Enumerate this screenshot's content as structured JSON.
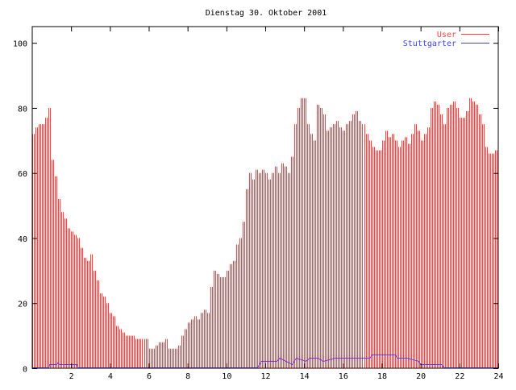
{
  "chart_data": {
    "type": "bar",
    "title": "Dienstag 30. Oktober 2001",
    "xlabel": "",
    "ylabel": "",
    "xlim": [
      0,
      24
    ],
    "ylim": [
      0,
      105
    ],
    "x_ticks": [
      "2",
      "4",
      "6",
      "8",
      "10",
      "12",
      "14",
      "16",
      "18",
      "20",
      "22",
      "24"
    ],
    "y_ticks": [
      "0",
      "20",
      "40",
      "60",
      "80",
      "100"
    ],
    "legend_position": "top-right",
    "series": [
      {
        "name": "User",
        "style": "impulses",
        "color": "#ff4040",
        "x_step_hours": 0.1667,
        "values": [
          72,
          74,
          75,
          75,
          77,
          80,
          64,
          59,
          52,
          48,
          46,
          43,
          42,
          41,
          40,
          37,
          34,
          33,
          35,
          30,
          27,
          23,
          22,
          20,
          17,
          16,
          13,
          12,
          11,
          10,
          10,
          10,
          9,
          9,
          9,
          9,
          6,
          6,
          7,
          8,
          8,
          9,
          6,
          6,
          6,
          7,
          10,
          12,
          14,
          15,
          16,
          15,
          17,
          18,
          17,
          25,
          30,
          29,
          28,
          28,
          30,
          32,
          33,
          38,
          40,
          45,
          55,
          60,
          58,
          61,
          60,
          61,
          60,
          58,
          60,
          62,
          60,
          63,
          62,
          60,
          65,
          75,
          80,
          83,
          83,
          75,
          72,
          70,
          81,
          80,
          78,
          73,
          74,
          75,
          76,
          74,
          73,
          75,
          76,
          78,
          79,
          76,
          75,
          72,
          70,
          68,
          67,
          67,
          70,
          73,
          71,
          72,
          70,
          68,
          70,
          71,
          69,
          72,
          75,
          73,
          70,
          72,
          74,
          80,
          82,
          81,
          78,
          75,
          80,
          81,
          82,
          80,
          77,
          77,
          79,
          83,
          82,
          81,
          78,
          75,
          68,
          66,
          66,
          67,
          68
        ]
      },
      {
        "name": "Stuttgarter",
        "style": "steps",
        "color": "#4040ff",
        "x": [
          0,
          0.85,
          0.9,
          1.25,
          1.3,
          1.4,
          2.3,
          2.35,
          11.6,
          11.8,
          12.6,
          12.75,
          13.4,
          13.6,
          14.1,
          14.3,
          14.7,
          15.0,
          15.6,
          17.4,
          17.5,
          18.7,
          18.8,
          19.3,
          19.9,
          20.0,
          21.1,
          21.2,
          24
        ],
        "y": [
          0,
          0,
          1,
          1,
          1.5,
          1,
          1,
          0,
          0,
          2,
          2,
          3,
          1,
          3,
          2,
          3,
          3,
          2,
          3,
          3,
          4,
          4,
          3,
          3,
          2,
          1,
          1,
          0,
          0
        ]
      }
    ]
  }
}
